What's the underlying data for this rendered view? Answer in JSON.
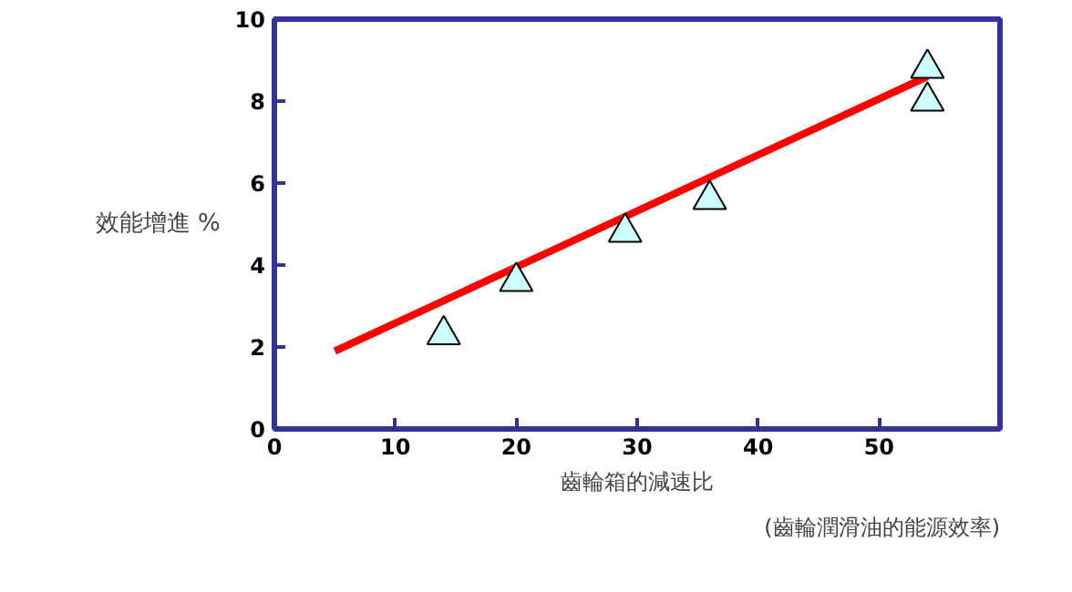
{
  "chart_data": {
    "type": "scatter",
    "xlabel": "齒輪箱的減速比",
    "ylabel": "效能增進 %",
    "annotations": [
      "(齒輪潤滑油的能源效率)"
    ],
    "xlim": [
      0,
      60
    ],
    "xticks": [
      0,
      10,
      20,
      30,
      40,
      50
    ],
    "ylim": [
      0,
      10
    ],
    "yticks": [
      0,
      2,
      4,
      6,
      8,
      10
    ],
    "grid": false,
    "series": [
      {
        "type": "line",
        "color": "#ff0000",
        "x": [
          5,
          54
        ],
        "values": [
          1.9,
          8.6
        ]
      },
      {
        "marker": "triangle",
        "color": "#ccffff",
        "x": [
          14,
          20,
          29,
          36,
          54,
          54
        ],
        "values": [
          2.3,
          3.6,
          4.8,
          5.6,
          8.8,
          8.0
        ]
      }
    ]
  }
}
